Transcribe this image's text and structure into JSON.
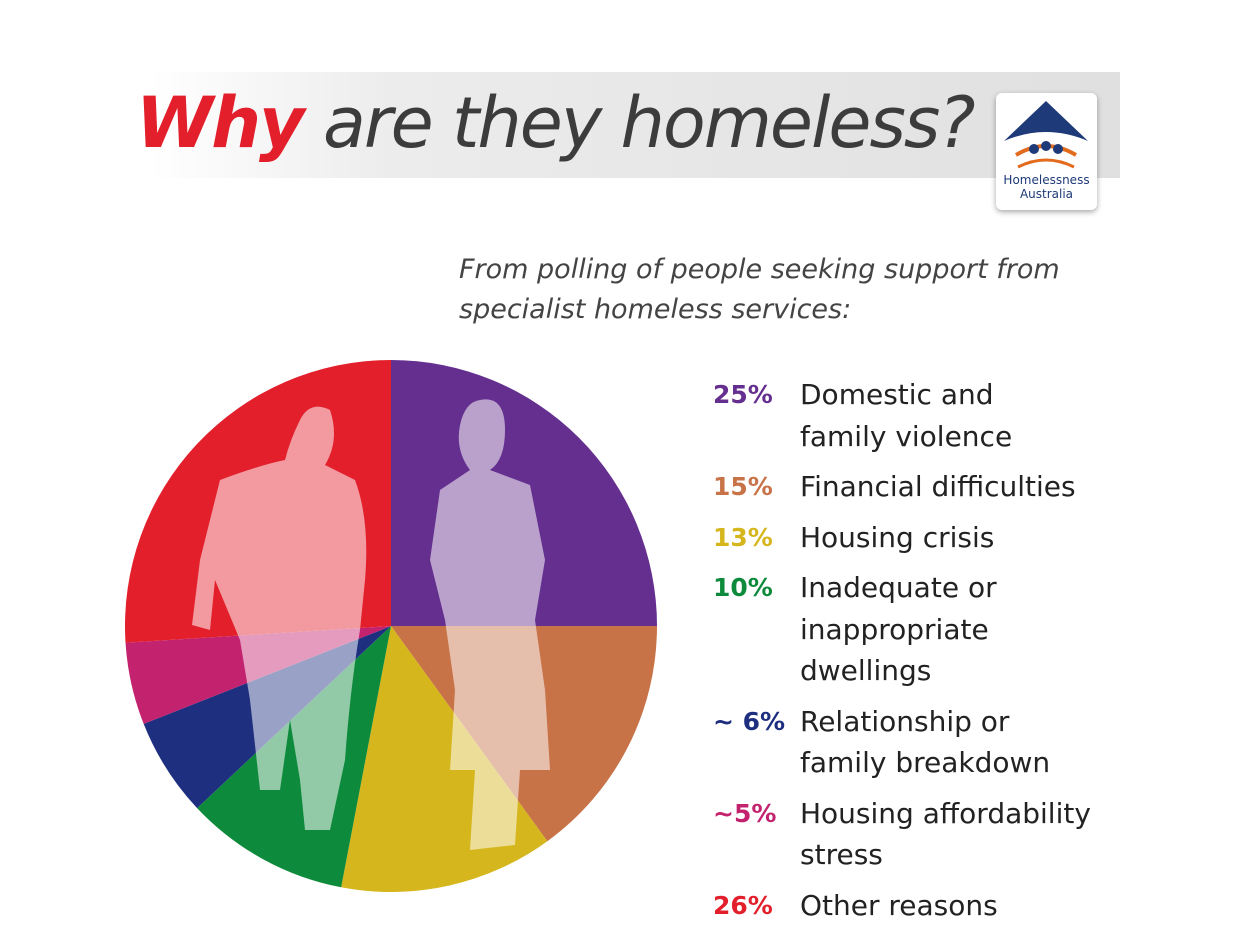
{
  "header": {
    "title_highlight": "Why",
    "title": "are they homeless?",
    "logo": [
      "Homelessness",
      "Australia"
    ]
  },
  "chart_data": {
    "type": "pie",
    "subtitle": "From polling of people seeking support from\nspecialist homeless services:",
    "categories": [
      "Domestic and\nfamily violence",
      "Financial difficulties",
      "Housing crisis",
      "Inadequate or\ninappropriate\ndwellings",
      "Relationship or\nfamily breakdown",
      "Housing affordability\nstress",
      "Other reasons"
    ],
    "values": [
      25,
      15,
      13,
      10,
      6,
      5,
      26
    ],
    "value_labels": [
      "25%",
      "15%",
      "13%",
      "10%",
      "~ 6%",
      "~5%",
      "26%"
    ],
    "colors": [
      "#642f8f",
      "#c87247",
      "#d5b61c",
      "#0e8a3c",
      "#1e2f80",
      "#c3226f",
      "#e21f2b"
    ]
  }
}
